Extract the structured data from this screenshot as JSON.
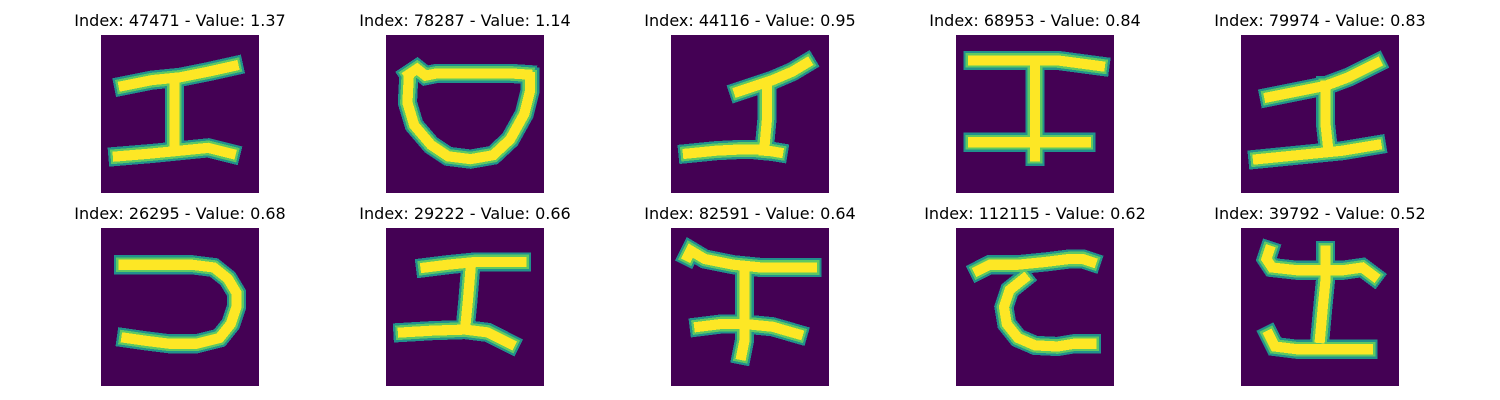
{
  "colors": {
    "background": "#440154",
    "stroke_core": "#fde725",
    "stroke_mid": "#5ec962",
    "stroke_edge": "#21918c"
  },
  "panels": [
    {
      "title": "Index: 47471 - Value: 1.37",
      "glyph": "g0"
    },
    {
      "title": "Index: 78287 - Value: 1.14",
      "glyph": "g1"
    },
    {
      "title": "Index: 44116 - Value: 0.95",
      "glyph": "g2"
    },
    {
      "title": "Index: 68953 - Value: 0.84",
      "glyph": "g3"
    },
    {
      "title": "Index: 79974 - Value: 0.83",
      "glyph": "g4"
    },
    {
      "title": "Index: 26295 - Value: 0.68",
      "glyph": "g5"
    },
    {
      "title": "Index: 29222 - Value: 0.66",
      "glyph": "g6"
    },
    {
      "title": "Index: 82591 - Value: 0.64",
      "glyph": "g7"
    },
    {
      "title": "Index: 112115 - Value: 0.62",
      "glyph": "g8"
    },
    {
      "title": "Index: 39792 - Value: 0.52",
      "glyph": "g9"
    }
  ]
}
